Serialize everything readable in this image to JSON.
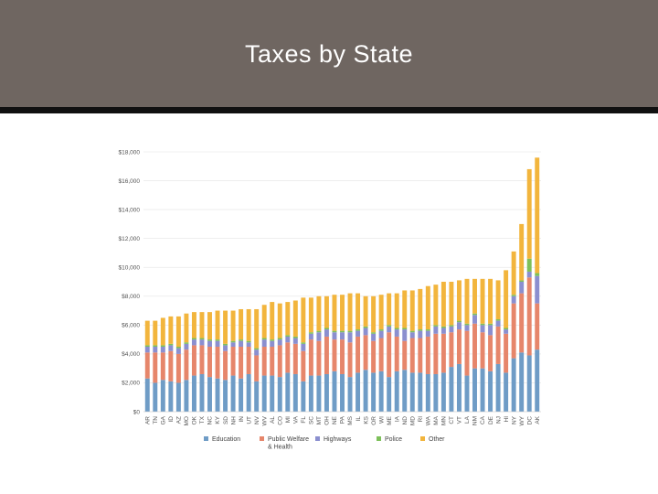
{
  "slide": {
    "title": "Taxes by State"
  },
  "colors": {
    "title_bg": "#6f6661",
    "Education": "#6f9cc6",
    "Public Welfare & Health": "#e6866b",
    "Highways": "#8b8fcf",
    "Police": "#7dc05a",
    "Other": "#f2b53d"
  },
  "chart_data": {
    "type": "bar",
    "stacked": true,
    "title": "",
    "xlabel": "",
    "ylabel": "",
    "ylim": [
      0,
      18000
    ],
    "yticks": [
      0,
      2000,
      4000,
      6000,
      8000,
      10000,
      12000,
      14000,
      16000,
      18000
    ],
    "ytick_labels": [
      "$0",
      "$2,000",
      "$4,000",
      "$6,000",
      "$8,000",
      "$10,000",
      "$12,000",
      "$14,000",
      "$16,000",
      "$18,000"
    ],
    "legend_position": "bottom",
    "categories": [
      "AR",
      "TN",
      "GA",
      "ID",
      "AZ",
      "MO",
      "OK",
      "TX",
      "NC",
      "KY",
      "SD",
      "NH",
      "IN",
      "UT",
      "NV",
      "WV",
      "AL",
      "CO",
      "MI",
      "VA",
      "FL",
      "SC",
      "MT",
      "OH",
      "NE",
      "PA",
      "MS",
      "IL",
      "KS",
      "OR",
      "WI",
      "ME",
      "IA",
      "ND",
      "MD",
      "RI",
      "WA",
      "MA",
      "MN",
      "CT",
      "VT",
      "LA",
      "NM",
      "CA",
      "DE",
      "NJ",
      "HI",
      "NY",
      "WY",
      "DC",
      "AK"
    ],
    "series": [
      {
        "name": "Education",
        "values": [
          2300,
          2000,
          2200,
          2100,
          2000,
          2200,
          2500,
          2600,
          2400,
          2300,
          2200,
          2500,
          2300,
          2600,
          2100,
          2500,
          2500,
          2400,
          2700,
          2600,
          2100,
          2500,
          2500,
          2600,
          2800,
          2600,
          2400,
          2700,
          2900,
          2700,
          2800,
          2400,
          2800,
          2900,
          2700,
          2700,
          2600,
          2600,
          2700,
          3100,
          3300,
          2500,
          3000,
          3000,
          2800,
          3300,
          2700,
          3700,
          4100,
          3900,
          4300
        ]
      },
      {
        "name": "Public Welfare & Health",
        "values": [
          1800,
          2100,
          1900,
          2100,
          2000,
          2100,
          2100,
          2000,
          2100,
          2200,
          2000,
          2000,
          2200,
          1900,
          1800,
          2000,
          2000,
          2200,
          2100,
          2100,
          2100,
          2500,
          2400,
          2600,
          2200,
          2400,
          2400,
          2500,
          2400,
          2200,
          2300,
          3100,
          2400,
          2000,
          2400,
          2400,
          2600,
          2800,
          2700,
          2400,
          2400,
          3100,
          3100,
          2500,
          2500,
          2600,
          2700,
          3800,
          4100,
          5400,
          3200
        ]
      },
      {
        "name": "Highways",
        "values": [
          400,
          400,
          400,
          400,
          400,
          400,
          400,
          400,
          400,
          400,
          400,
          300,
          400,
          300,
          400,
          500,
          400,
          400,
          400,
          400,
          500,
          400,
          600,
          500,
          500,
          500,
          700,
          400,
          500,
          500,
          500,
          400,
          500,
          800,
          400,
          500,
          400,
          500,
          400,
          400,
          500,
          400,
          600,
          500,
          700,
          400,
          300,
          500,
          800,
          400,
          1900
        ]
      },
      {
        "name": "Police",
        "values": [
          100,
          100,
          100,
          100,
          100,
          100,
          100,
          100,
          100,
          100,
          100,
          100,
          100,
          100,
          100,
          100,
          100,
          100,
          100,
          100,
          100,
          100,
          100,
          100,
          100,
          100,
          100,
          100,
          100,
          100,
          100,
          100,
          100,
          100,
          100,
          100,
          100,
          100,
          100,
          100,
          100,
          100,
          100,
          100,
          100,
          100,
          100,
          100,
          100,
          900,
          200
        ]
      },
      {
        "name": "Other",
        "values": [
          1700,
          1700,
          1900,
          1900,
          2100,
          2000,
          1800,
          1800,
          1900,
          2000,
          2300,
          2100,
          2100,
          2200,
          2700,
          2300,
          2600,
          2400,
          2300,
          2500,
          3100,
          2400,
          2400,
          2200,
          2500,
          2500,
          2600,
          2500,
          2100,
          2500,
          2400,
          2200,
          2400,
          2600,
          2800,
          2800,
          3000,
          2800,
          3100,
          3000,
          2800,
          3100,
          2400,
          3100,
          3100,
          2700,
          4000,
          3000,
          3900,
          6200,
          8000
        ]
      }
    ]
  }
}
